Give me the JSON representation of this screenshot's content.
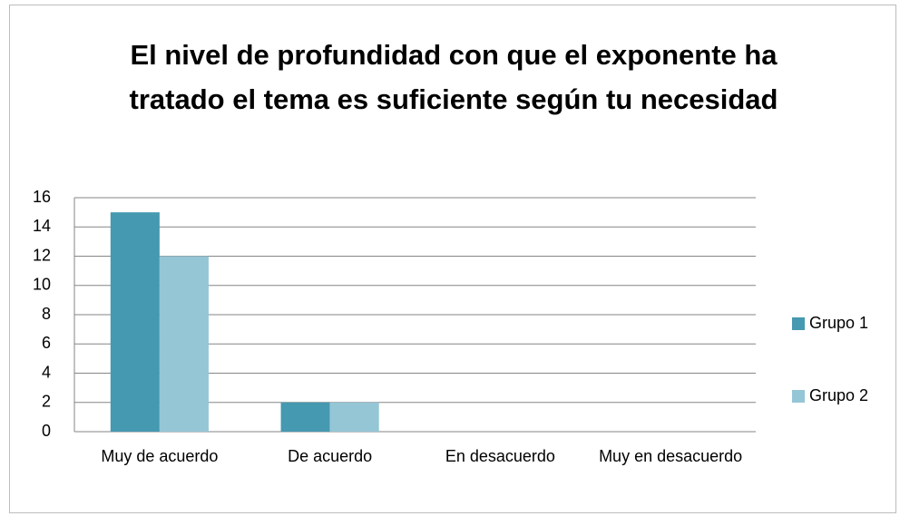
{
  "chart_data": {
    "type": "bar",
    "title": "El nivel de profundidad con que el exponente ha tratado el tema es suficiente según tu necesidad",
    "categories": [
      "Muy de acuerdo",
      "De acuerdo",
      "En desacuerdo",
      "Muy en desacuerdo"
    ],
    "series": [
      {
        "name": "Grupo 1",
        "color": "#4599b0",
        "values": [
          15,
          2,
          0,
          0
        ]
      },
      {
        "name": "Grupo 2",
        "color": "#95c6d6",
        "values": [
          12,
          2,
          0,
          0
        ]
      }
    ],
    "ylim": [
      0,
      16
    ],
    "yticks": [
      0,
      2,
      4,
      6,
      8,
      10,
      12,
      14,
      16
    ],
    "grid": true,
    "legend": "right"
  }
}
